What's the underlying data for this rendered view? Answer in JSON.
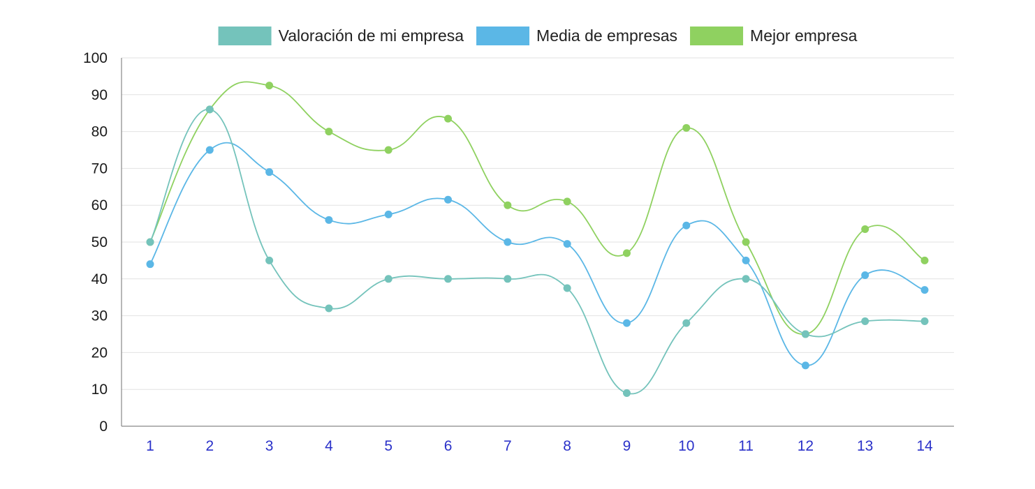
{
  "chart_data": {
    "type": "line",
    "smooth": true,
    "categories": [
      "1",
      "2",
      "3",
      "4",
      "5",
      "6",
      "7",
      "8",
      "9",
      "10",
      "11",
      "12",
      "13",
      "14"
    ],
    "ylim": [
      0,
      100
    ],
    "yticks": [
      0,
      10,
      20,
      30,
      40,
      50,
      60,
      70,
      80,
      90,
      100
    ],
    "ytick_labels": [
      "0",
      "10",
      "20",
      "30",
      "40",
      "50",
      "60",
      "70",
      "80",
      "90",
      "100"
    ],
    "grid": true,
    "legend_position": "top-center",
    "series": [
      {
        "name": "Valoración de mi empresa",
        "color": "#74c3bb",
        "values": [
          50,
          86,
          45,
          32,
          40,
          40,
          40,
          37.5,
          9,
          28,
          40,
          25,
          28.5,
          28.5
        ]
      },
      {
        "name": "Media de empresas",
        "color": "#5bb7e6",
        "values": [
          44,
          75,
          69,
          56,
          57.5,
          61.5,
          50,
          49.5,
          28,
          54.5,
          45,
          16.5,
          41,
          37
        ]
      },
      {
        "name": "Mejor empresa",
        "color": "#8fd160",
        "values": [
          50,
          86,
          92.5,
          80,
          75,
          83.5,
          60,
          61,
          47,
          81,
          50,
          25,
          53.5,
          45
        ]
      }
    ],
    "colors": {
      "x_tick_label": "#2a31c9",
      "y_tick_label": "#1a1a1a",
      "grid": "#e2e2e2",
      "axis": "#888888"
    }
  }
}
